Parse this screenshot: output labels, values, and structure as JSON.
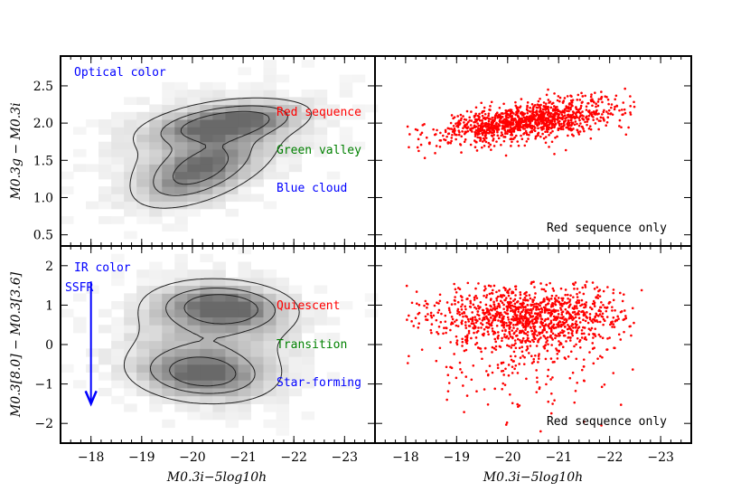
{
  "chart_data": [
    {
      "panel": "top-left",
      "type": "heatmap",
      "annotations": [
        {
          "text": "Optical color",
          "color": "#0000ff"
        },
        {
          "text": "Red sequence",
          "color": "#ff0000"
        },
        {
          "text": "Green valley",
          "color": "#008000"
        },
        {
          "text": "Blue cloud",
          "color": "#0000ff"
        }
      ],
      "xlim": [
        -17.4,
        -23.6
      ],
      "ylim": [
        0.35,
        2.9
      ],
      "yticks": [
        "0.5",
        "1.0",
        "1.5",
        "2.0",
        "2.5"
      ],
      "ylabel": "M0.3g − M0.3i",
      "contours_color": "#000000",
      "density_colormap": "grayscale"
    },
    {
      "panel": "top-right",
      "type": "scatter",
      "annotation": "Red sequence only",
      "marker_color": "#ff0000",
      "xlim": [
        -17.4,
        -23.6
      ],
      "ylim": [
        0.35,
        2.9
      ],
      "cloud": {
        "x_range": [
          -18.0,
          -22.5
        ],
        "y_mean_at_x": [
          [
            -18.5,
            1.85
          ],
          [
            -20.5,
            2.0
          ],
          [
            -22.0,
            2.15
          ]
        ],
        "y_scatter": 0.12,
        "n_points": 1200
      }
    },
    {
      "panel": "bottom-left",
      "type": "heatmap",
      "annotations": [
        {
          "text": "IR color",
          "color": "#0000ff"
        },
        {
          "text": "SSFR",
          "color": "#0000ff"
        },
        {
          "text": "Quiescent",
          "color": "#ff0000"
        },
        {
          "text": "Transition",
          "color": "#008000"
        },
        {
          "text": "Star-forming",
          "color": "#0000ff"
        }
      ],
      "arrow": {
        "from_y": 1.6,
        "to_y": -1.5,
        "x": -18.0,
        "color": "#0000ff"
      },
      "xlim": [
        -17.4,
        -23.6
      ],
      "ylim": [
        -2.5,
        2.5
      ],
      "yticks": [
        "−2",
        "−1",
        "0",
        "1",
        "2"
      ],
      "ylabel": "M0.3[8.0] − M0.3[3.6]",
      "xticks": [
        "−18",
        "−19",
        "−20",
        "−21",
        "−22",
        "−23"
      ],
      "xlabel": "M0.3i−5log10h"
    },
    {
      "panel": "bottom-right",
      "type": "scatter",
      "annotation": "Red sequence only",
      "marker_color": "#ff0000",
      "xlim": [
        -17.4,
        -23.6
      ],
      "ylim": [
        -2.5,
        2.5
      ],
      "xticks": [
        "−18",
        "−19",
        "−20",
        "−21",
        "−22",
        "−23"
      ],
      "xlabel": "M0.3i−5log10h",
      "cloud": {
        "x_range": [
          -18.0,
          -22.7
        ],
        "y_peak": 0.8,
        "y_scatter": 0.35,
        "tail_to": -2.3,
        "n_points": 1300
      }
    }
  ],
  "labels": {
    "ylabel_top": "M0.3g − M0.3i",
    "ylabel_bottom": "M0.3[8.0] − M0.3[3.6]",
    "xlabel": "M0.3i−5log10h"
  }
}
